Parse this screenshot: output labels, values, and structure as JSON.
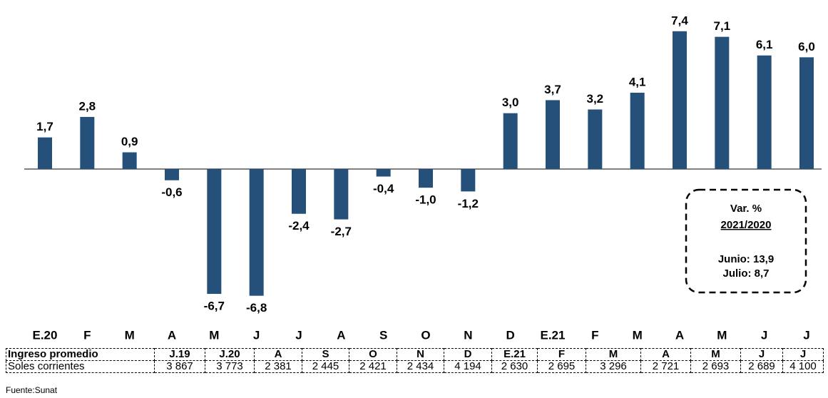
{
  "chart_data": {
    "type": "bar",
    "categories": [
      "E.20",
      "F",
      "M",
      "A",
      "M",
      "J",
      "J",
      "A",
      "S",
      "O",
      "N",
      "D",
      "E.21",
      "F",
      "M",
      "A",
      "M",
      "J",
      "J"
    ],
    "values": [
      1.7,
      2.8,
      0.9,
      -0.6,
      -6.7,
      -6.8,
      -2.4,
      -2.7,
      -0.4,
      -1.0,
      -1.2,
      3.0,
      3.7,
      3.2,
      4.1,
      7.4,
      7.1,
      6.1,
      6.0
    ],
    "value_labels": [
      "1,7",
      "2,8",
      "0,9",
      "-0,6",
      "-6,7",
      "-6,8",
      "-2,4",
      "-2,7",
      "-0,4",
      "-1,0",
      "-1,2",
      "3,0",
      "3,7",
      "3,2",
      "4,1",
      "7,4",
      "7,1",
      "6,1",
      "6,0"
    ],
    "color": "#24507a",
    "ylim": [
      -8,
      9
    ],
    "annotation": {
      "title": "Var. %",
      "period": "2021/2020",
      "lines": [
        "Junio: 13,9",
        "Julio: 8,7"
      ]
    }
  },
  "table": {
    "header": [
      "Ingreso promedio",
      "J.19",
      "J.20",
      "A",
      "S",
      "O",
      "N",
      "D",
      "E.21",
      "F",
      "M",
      "A",
      "M",
      "J",
      "J"
    ],
    "rows": [
      [
        "Soles corrientes",
        "3 867",
        "3 773",
        "2 381",
        "2 445",
        "2 421",
        "2 434",
        "4 194",
        "2 630",
        "2 695",
        "3 296",
        "2 721",
        "2 693",
        "2 689",
        "4 100"
      ]
    ]
  },
  "source": "Fuente:Sunat"
}
